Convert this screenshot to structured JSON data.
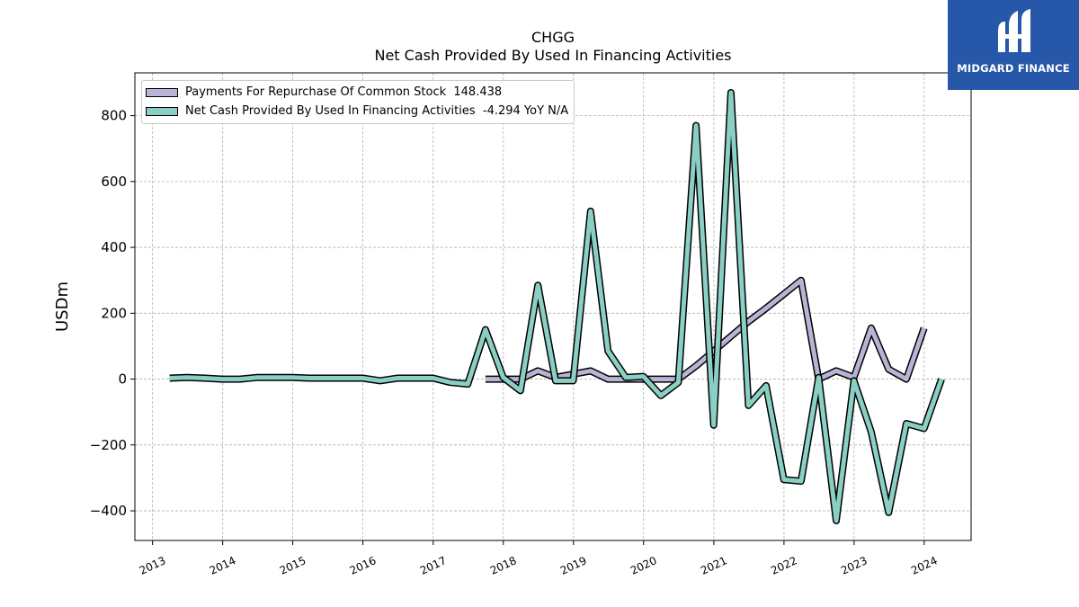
{
  "chart_data": {
    "type": "line",
    "title": "CHGG",
    "subtitle": "Net Cash Provided By Used In Financing Activities",
    "ylabel": "USDm",
    "xlabel": "",
    "xlim": [
      "2012-10-01",
      "2024-09-01"
    ],
    "ylim": [
      -490,
      930
    ],
    "yticks": [
      800,
      600,
      400,
      200,
      0,
      -200,
      -400
    ],
    "ytick_labels": [
      "800",
      "600",
      "400",
      "200",
      "0",
      "−200",
      "−400"
    ],
    "xtick_labels": [
      "2013",
      "2014",
      "2015",
      "2016",
      "2017",
      "2018",
      "2019",
      "2020",
      "2021",
      "2022",
      "2023",
      "2024"
    ],
    "grid": true,
    "legend_position": "top-left",
    "series": [
      {
        "name": "Payments For Repurchase Of Common Stock",
        "legend_value": "148.438",
        "color": "#b8b4d6",
        "points": [
          [
            "2017-09-30",
            0
          ],
          [
            "2017-12-31",
            0
          ],
          [
            "2018-03-31",
            0
          ],
          [
            "2018-06-30",
            25
          ],
          [
            "2018-09-30",
            5
          ],
          [
            "2018-12-31",
            15
          ],
          [
            "2019-03-31",
            25
          ],
          [
            "2019-06-30",
            0
          ],
          [
            "2019-09-30",
            0
          ],
          [
            "2019-12-31",
            0
          ],
          [
            "2020-03-31",
            0
          ],
          [
            "2020-06-30",
            0
          ],
          [
            "2020-09-30",
            40
          ],
          [
            "2020-12-31",
            85
          ],
          [
            "2021-03-31",
            130
          ],
          [
            "2021-06-30",
            175
          ],
          [
            "2021-09-30",
            215
          ],
          [
            "2021-12-31",
            258
          ],
          [
            "2022-03-31",
            300
          ],
          [
            "2022-06-30",
            0
          ],
          [
            "2022-09-30",
            25
          ],
          [
            "2022-12-31",
            5
          ],
          [
            "2023-03-31",
            155
          ],
          [
            "2023-06-30",
            30
          ],
          [
            "2023-09-30",
            0
          ],
          [
            "2023-12-31",
            155
          ]
        ]
      },
      {
        "name": "Net Cash Provided By Used In Financing Activities",
        "legend_value": "-4.294 YoY N/A",
        "color": "#8acfc3",
        "points": [
          [
            "2013-03-31",
            3
          ],
          [
            "2013-06-30",
            5
          ],
          [
            "2013-09-30",
            3
          ],
          [
            "2013-12-31",
            0
          ],
          [
            "2014-03-31",
            0
          ],
          [
            "2014-06-30",
            5
          ],
          [
            "2014-09-30",
            5
          ],
          [
            "2014-12-31",
            5
          ],
          [
            "2015-03-31",
            3
          ],
          [
            "2015-06-30",
            3
          ],
          [
            "2015-09-30",
            3
          ],
          [
            "2015-12-31",
            3
          ],
          [
            "2016-03-31",
            -5
          ],
          [
            "2016-06-30",
            3
          ],
          [
            "2016-09-30",
            3
          ],
          [
            "2016-12-31",
            3
          ],
          [
            "2017-03-31",
            -10
          ],
          [
            "2017-06-30",
            -15
          ],
          [
            "2017-09-30",
            150
          ],
          [
            "2017-12-31",
            5
          ],
          [
            "2018-03-31",
            -35
          ],
          [
            "2018-06-30",
            285
          ],
          [
            "2018-09-30",
            -5
          ],
          [
            "2018-12-31",
            -5
          ],
          [
            "2019-03-31",
            510
          ],
          [
            "2019-06-30",
            85
          ],
          [
            "2019-09-30",
            5
          ],
          [
            "2019-12-31",
            8
          ],
          [
            "2020-03-31",
            -50
          ],
          [
            "2020-06-30",
            -10
          ],
          [
            "2020-09-30",
            770
          ],
          [
            "2020-12-31",
            -140
          ],
          [
            "2021-03-31",
            870
          ],
          [
            "2021-06-30",
            -80
          ],
          [
            "2021-09-30",
            -20
          ],
          [
            "2021-12-31",
            -305
          ],
          [
            "2022-03-31",
            -310
          ],
          [
            "2022-06-30",
            5
          ],
          [
            "2022-09-30",
            -430
          ],
          [
            "2022-12-31",
            -5
          ],
          [
            "2023-03-31",
            -160
          ],
          [
            "2023-06-30",
            -405
          ],
          [
            "2023-09-30",
            -135
          ],
          [
            "2023-12-31",
            -150
          ],
          [
            "2024-03-31",
            0
          ]
        ]
      }
    ]
  },
  "logo": {
    "text": "MIDGARD FINANCE",
    "background": "#2757a8"
  }
}
